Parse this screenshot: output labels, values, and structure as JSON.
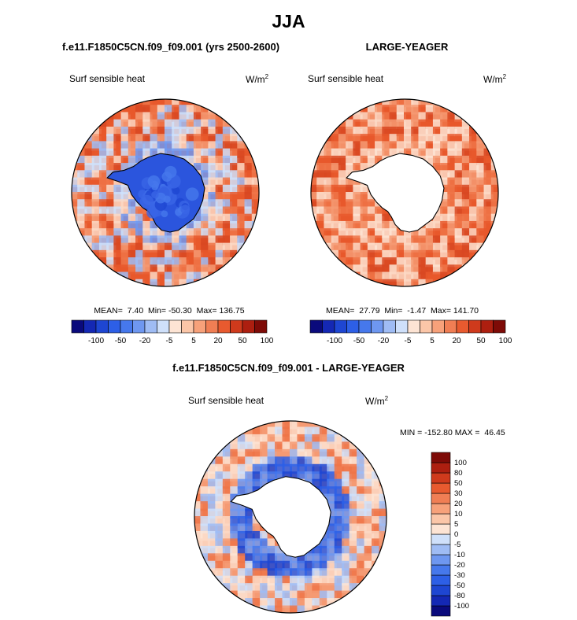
{
  "title": "JJA",
  "panels": [
    {
      "case": "f.e11.F1850C5CN.f09_f09.001 (yrs 2500-2600)",
      "variable": "Surf sensible heat",
      "units": "W/m",
      "units_exp": "2",
      "stats": "MEAN=  7.40  Min= -50.30  Max= 136.75"
    },
    {
      "case": "LARGE-YEAGER",
      "variable": "Surf sensible heat",
      "units": "W/m",
      "units_exp": "2",
      "stats": "MEAN=  27.79  Min=  -1.47  Max= 141.70"
    }
  ],
  "difference": {
    "title": "f.e11.F1850C5CN.f09_f09.001 - LARGE-YEAGER",
    "variable": "Surf sensible heat",
    "units": "W/m",
    "units_exp": "2",
    "stats": "MIN = -152.80 MAX =  46.45"
  },
  "colors": {
    "land": "#ffffff",
    "coast": "#000000"
  },
  "chart_data": [
    {
      "type": "heatmap",
      "title": "Surf sensible heat",
      "projection": "south-polar-stereographic",
      "mean": 7.4,
      "min": -50.3,
      "max": 136.75,
      "colorbar": {
        "orientation": "horizontal",
        "levels": [
          -100,
          -80,
          -50,
          -30,
          -20,
          -10,
          -5,
          0,
          5,
          10,
          20,
          30,
          50,
          80,
          100
        ],
        "tick_labels": [
          "-100",
          "-50",
          "-20",
          "-5",
          "5",
          "20",
          "50",
          "100"
        ],
        "colors": [
          "#0a0a7c",
          "#1428b4",
          "#1e46d2",
          "#2d5fe6",
          "#4678ec",
          "#6e97f0",
          "#9fbcf4",
          "#cfe0fa",
          "#fde4d4",
          "#fbc6a8",
          "#f7a17a",
          "#f07e54",
          "#e85a2f",
          "#cf3a1c",
          "#ad1f10",
          "#7e0b07"
        ]
      },
      "ocean_colors": [
        "#e8582c",
        "#d84822",
        "#ef7448",
        "#f49a73",
        "#fbd8c4",
        "#cfe0fa",
        "#9fbcf4"
      ],
      "land_colors": [
        "#2b55dd",
        "#3a65e6",
        "#1e46d2",
        "#4678ec"
      ]
    },
    {
      "type": "heatmap",
      "title": "Surf sensible heat",
      "projection": "south-polar-stereographic",
      "mean": 27.79,
      "min": -1.47,
      "max": 141.7,
      "colorbar": {
        "orientation": "horizontal",
        "levels": [
          -100,
          -80,
          -50,
          -30,
          -20,
          -10,
          -5,
          0,
          5,
          10,
          20,
          30,
          50,
          80,
          100
        ],
        "tick_labels": [
          "-100",
          "-50",
          "-20",
          "-5",
          "5",
          "20",
          "50",
          "100"
        ],
        "colors": [
          "#0a0a7c",
          "#1428b4",
          "#1e46d2",
          "#2d5fe6",
          "#4678ec",
          "#6e97f0",
          "#9fbcf4",
          "#cfe0fa",
          "#fde4d4",
          "#fbc6a8",
          "#f7a17a",
          "#f07e54",
          "#e85a2f",
          "#cf3a1c",
          "#ad1f10",
          "#7e0b07"
        ]
      },
      "ocean_colors": [
        "#e8582c",
        "#d84822",
        "#ef7448",
        "#f49a73",
        "#fbd8c4",
        "#fde4d4"
      ],
      "land_colors": [
        "#ffffff"
      ]
    },
    {
      "type": "heatmap",
      "title": "f.e11.F1850C5CN.f09_f09.001 - LARGE-YEAGER",
      "projection": "south-polar-stereographic",
      "min": -152.8,
      "max": 46.45,
      "colorbar": {
        "orientation": "vertical",
        "levels": [
          -100,
          -80,
          -50,
          -30,
          -20,
          -10,
          -5,
          0,
          5,
          10,
          20,
          30,
          50,
          80,
          100
        ],
        "tick_labels": [
          "-100",
          "-80",
          "-50",
          "-30",
          "-20",
          "-10",
          "-5",
          "0",
          "5",
          "10",
          "20",
          "30",
          "50",
          "80",
          "100"
        ],
        "colors": [
          "#0a0a7c",
          "#1428b4",
          "#1e46d2",
          "#2d5fe6",
          "#4678ec",
          "#6e97f0",
          "#9fbcf4",
          "#cfe0fa",
          "#fde4d4",
          "#fbc6a8",
          "#f7a17a",
          "#f07e54",
          "#e85a2f",
          "#cf3a1c",
          "#ad1f10",
          "#7e0b07"
        ]
      },
      "ocean_colors": [
        "#f49a73",
        "#fbd8c4",
        "#cfe0fa",
        "#9fbcf4",
        "#ef7448",
        "#fde4d4"
      ],
      "ring_colors": [
        "#1e46d2",
        "#2d5fe6",
        "#4678ec",
        "#6e97f0"
      ],
      "land_colors": [
        "#ffffff"
      ]
    }
  ]
}
